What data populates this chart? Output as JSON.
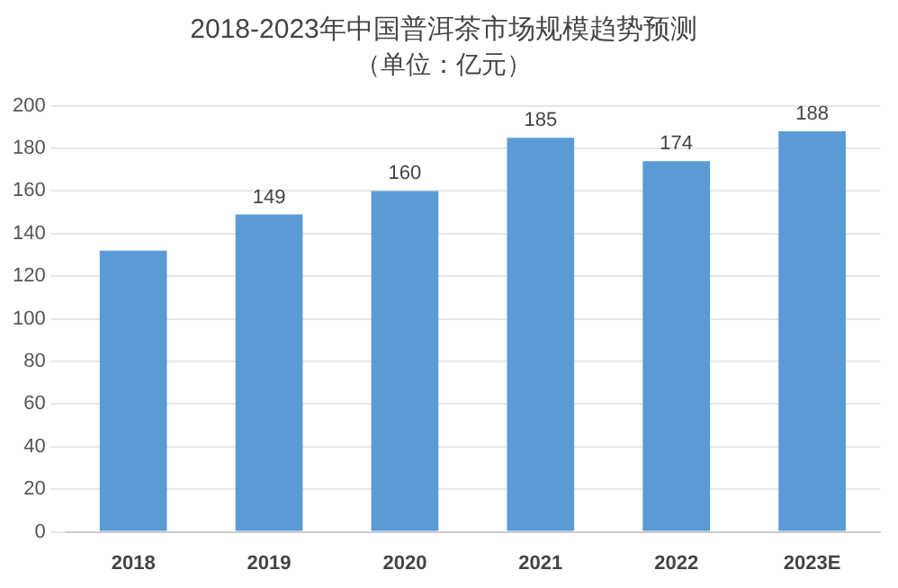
{
  "chart_data": {
    "type": "bar",
    "title": "2018-2023年中国普洱茶市场规模趋势预测",
    "subtitle": "（单位：亿元）",
    "categories": [
      "2018",
      "2019",
      "2020",
      "2021",
      "2022",
      "2023E"
    ],
    "values": [
      132,
      149,
      160,
      185,
      174,
      188
    ],
    "value_labels": [
      null,
      "149",
      "160",
      "185",
      "174",
      "188"
    ],
    "color": "#5b9bd5",
    "ylim": [
      0,
      200
    ],
    "yticks": [
      0,
      20,
      40,
      60,
      80,
      100,
      120,
      140,
      160,
      180,
      200
    ],
    "grid": "y",
    "legend": false
  }
}
